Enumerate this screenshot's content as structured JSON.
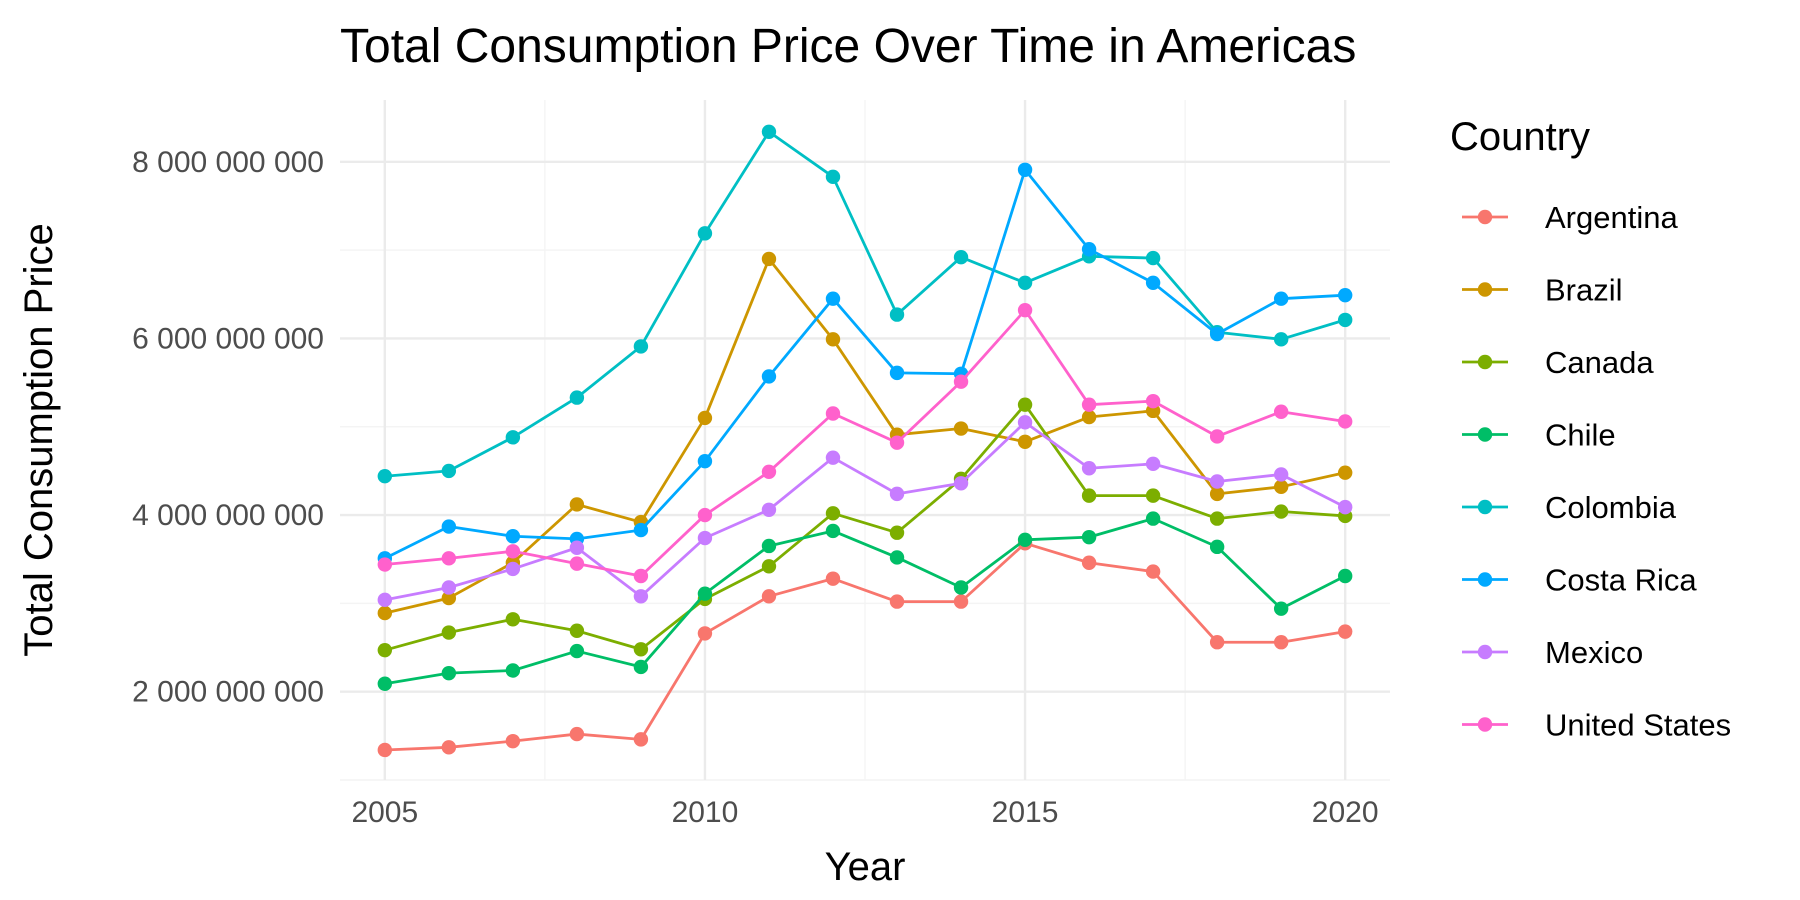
{
  "chart_data": {
    "type": "line",
    "title": "Total Consumption Price Over Time in Americas",
    "xlabel": "Year",
    "ylabel": "Total Consumption Price",
    "xlim": [
      2004.3,
      2020.7
    ],
    "ylim": [
      1000000000,
      8700000000
    ],
    "x_ticks": [
      2005,
      2010,
      2015,
      2020
    ],
    "x_tick_labels": [
      "2005",
      "2010",
      "2015",
      "2020"
    ],
    "y_ticks": [
      2000000000,
      4000000000,
      6000000000,
      8000000000
    ],
    "y_tick_labels": [
      "2 000 000 000",
      "4 000 000 000",
      "6 000 000 000",
      "8 000 000 000"
    ],
    "grid": true,
    "legend_title": "Country",
    "legend_position": "right",
    "x": [
      2005,
      2006,
      2007,
      2008,
      2009,
      2010,
      2011,
      2012,
      2013,
      2014,
      2015,
      2016,
      2017,
      2018,
      2019,
      2020
    ],
    "series": [
      {
        "name": "Argentina",
        "color": "#F8766D",
        "values": [
          1340000000,
          1370000000,
          1440000000,
          1520000000,
          1460000000,
          2660000000,
          3080000000,
          3280000000,
          3020000000,
          3020000000,
          3680000000,
          3460000000,
          3360000000,
          2560000000,
          2560000000,
          2680000000
        ]
      },
      {
        "name": "Brazil",
        "color": "#CD9600",
        "values": [
          2890000000,
          3060000000,
          3460000000,
          4120000000,
          3920000000,
          5100000000,
          6900000000,
          5990000000,
          4910000000,
          4980000000,
          4830000000,
          5110000000,
          5180000000,
          4240000000,
          4320000000,
          4480000000
        ]
      },
      {
        "name": "Canada",
        "color": "#7CAE00",
        "values": [
          2470000000,
          2670000000,
          2820000000,
          2690000000,
          2480000000,
          3050000000,
          3420000000,
          4020000000,
          3800000000,
          4410000000,
          5250000000,
          4220000000,
          4220000000,
          3960000000,
          4040000000,
          3990000000
        ]
      },
      {
        "name": "Chile",
        "color": "#00BE67",
        "values": [
          2090000000,
          2210000000,
          2240000000,
          2460000000,
          2280000000,
          3110000000,
          3650000000,
          3820000000,
          3520000000,
          3180000000,
          3720000000,
          3750000000,
          3960000000,
          3640000000,
          2940000000,
          3310000000
        ]
      },
      {
        "name": "Colombia",
        "color": "#00BFC4",
        "values": [
          4440000000,
          4500000000,
          4880000000,
          5330000000,
          5910000000,
          7190000000,
          8340000000,
          7830000000,
          6270000000,
          6920000000,
          6630000000,
          6930000000,
          6910000000,
          6070000000,
          5990000000,
          6210000000
        ]
      },
      {
        "name": "Costa Rica",
        "color": "#00A9FF",
        "values": [
          3510000000,
          3870000000,
          3760000000,
          3730000000,
          3830000000,
          4610000000,
          5570000000,
          6450000000,
          5610000000,
          5600000000,
          7910000000,
          7010000000,
          6630000000,
          6050000000,
          6450000000,
          6490000000
        ]
      },
      {
        "name": "Mexico",
        "color": "#C77CFF",
        "values": [
          3040000000,
          3180000000,
          3390000000,
          3630000000,
          3080000000,
          3740000000,
          4060000000,
          4650000000,
          4240000000,
          4360000000,
          5050000000,
          4530000000,
          4580000000,
          4380000000,
          4460000000,
          4090000000
        ]
      },
      {
        "name": "United States",
        "color": "#FF61CC",
        "values": [
          3440000000,
          3510000000,
          3590000000,
          3450000000,
          3310000000,
          4000000000,
          4490000000,
          5150000000,
          4820000000,
          5510000000,
          6320000000,
          5250000000,
          5290000000,
          4890000000,
          5170000000,
          5060000000
        ]
      }
    ]
  }
}
